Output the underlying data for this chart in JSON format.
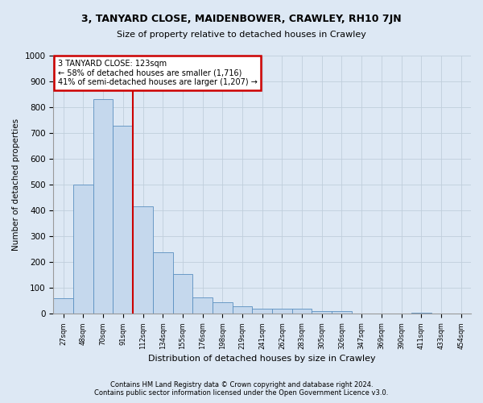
{
  "title": "3, TANYARD CLOSE, MAIDENBOWER, CRAWLEY, RH10 7JN",
  "subtitle": "Size of property relative to detached houses in Crawley",
  "xlabel": "Distribution of detached houses by size in Crawley",
  "ylabel": "Number of detached properties",
  "footer1": "Contains HM Land Registry data © Crown copyright and database right 2024.",
  "footer2": "Contains public sector information licensed under the Open Government Licence v3.0.",
  "categories": [
    "27sqm",
    "48sqm",
    "70sqm",
    "91sqm",
    "112sqm",
    "134sqm",
    "155sqm",
    "176sqm",
    "198sqm",
    "219sqm",
    "241sqm",
    "262sqm",
    "283sqm",
    "305sqm",
    "326sqm",
    "347sqm",
    "369sqm",
    "390sqm",
    "411sqm",
    "433sqm",
    "454sqm"
  ],
  "values": [
    60,
    500,
    830,
    730,
    415,
    240,
    155,
    65,
    45,
    30,
    20,
    20,
    20,
    10,
    10,
    0,
    0,
    0,
    5,
    0,
    0
  ],
  "bar_color": "#c5d8ed",
  "bar_edge_color": "#5a8fc0",
  "red_line_index": 4.0,
  "annotation_text": "3 TANYARD CLOSE: 123sqm\n← 58% of detached houses are smaller (1,716)\n41% of semi-detached houses are larger (1,207) →",
  "annotation_box_color": "#ffffff",
  "annotation_box_edge": "#cc0000",
  "property_line_color": "#cc0000",
  "grid_color": "#c0cedc",
  "background_color": "#dde8f4",
  "fig_background": "#dde8f4",
  "ylim": [
    0,
    1000
  ],
  "yticks": [
    0,
    100,
    200,
    300,
    400,
    500,
    600,
    700,
    800,
    900,
    1000
  ]
}
